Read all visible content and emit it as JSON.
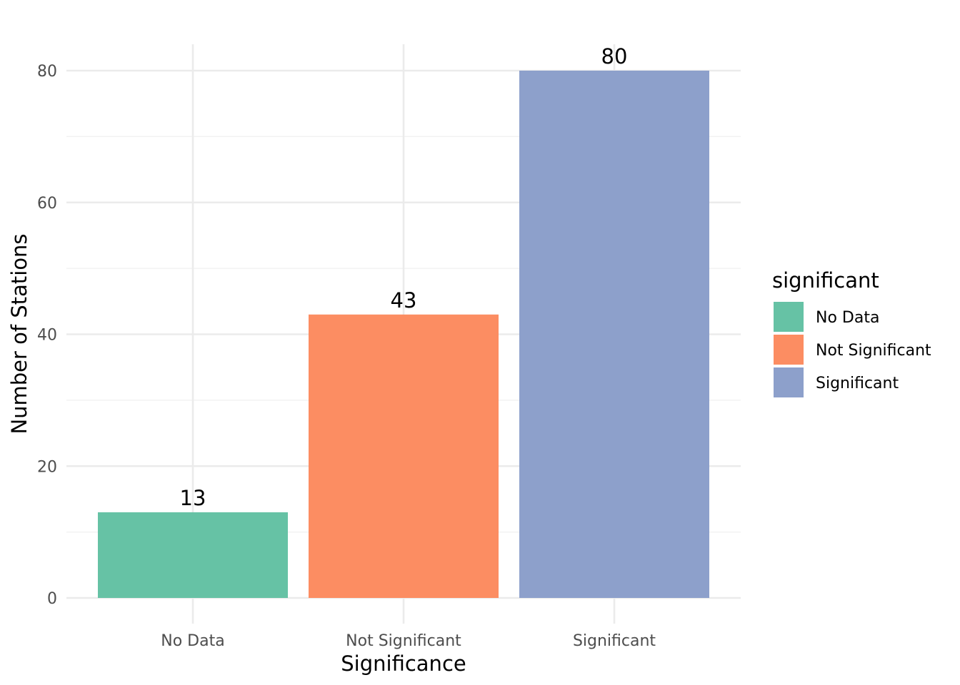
{
  "chart_data": {
    "type": "bar",
    "categories": [
      "No Data",
      "Not Significant",
      "Significant"
    ],
    "values": [
      13,
      43,
      80
    ],
    "data_labels": [
      "13",
      "43",
      "80"
    ],
    "colors": [
      "#66c2a5",
      "#fc8d62",
      "#8da0cb"
    ],
    "title": "",
    "xlabel": "Significance",
    "ylabel": "Number of Stations",
    "ylim": [
      0,
      84
    ],
    "yticks": [
      0,
      20,
      40,
      60,
      80
    ],
    "yticks_minor": [
      10,
      30,
      50,
      70
    ],
    "grid": true,
    "legend": {
      "title": "significant",
      "position": "right",
      "entries": [
        "No Data",
        "Not Significant",
        "Significant"
      ]
    }
  }
}
